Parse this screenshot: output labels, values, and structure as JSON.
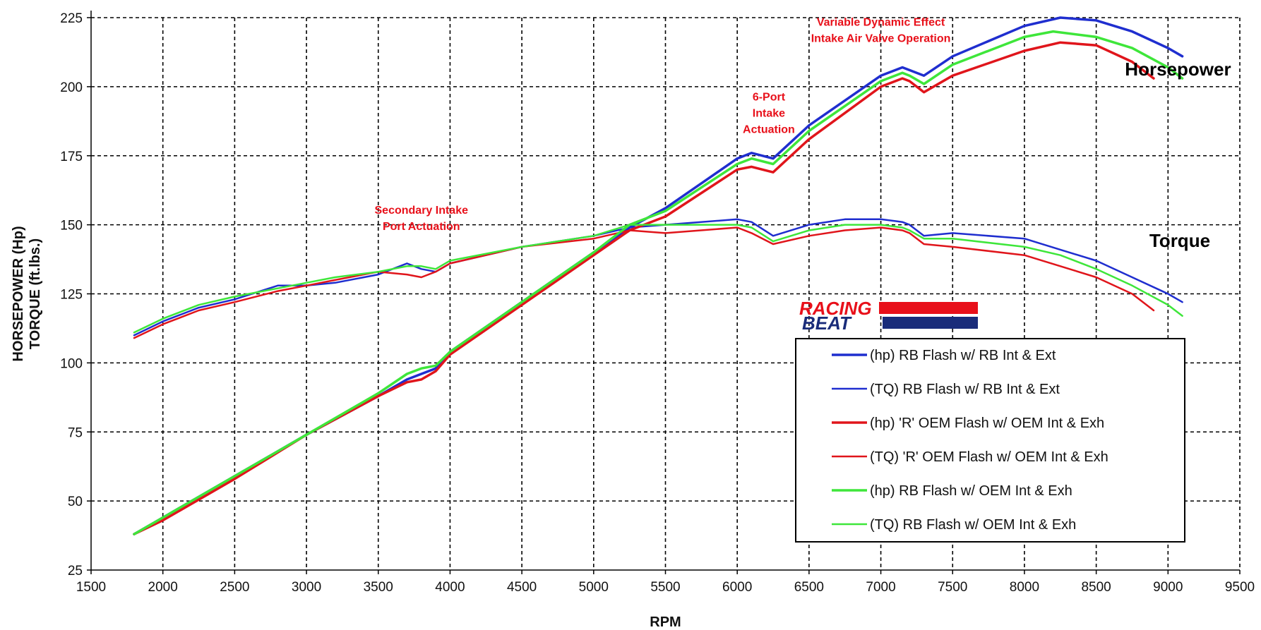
{
  "chart_data": {
    "type": "line",
    "title": "",
    "xlabel": "RPM",
    "ylabel_lines": [
      "HORSEPOWER (Hp)",
      "TORQUE (ft.lbs.)"
    ],
    "xlim": [
      1500,
      9500
    ],
    "ylim": [
      25,
      225
    ],
    "x_ticks": [
      1500,
      2000,
      2500,
      3000,
      3500,
      4000,
      4500,
      5000,
      5500,
      6000,
      6500,
      7000,
      7500,
      8000,
      8500,
      9000,
      9500
    ],
    "y_ticks": [
      25,
      50,
      75,
      100,
      125,
      150,
      175,
      200,
      225
    ],
    "grid": true,
    "legend_position": "bottom-right",
    "series": [
      {
        "name": "(hp) RB Flash w/ RB Int & Ext",
        "color": "#1f2ecf",
        "width": 3.5,
        "x": [
          1800,
          2000,
          2500,
          3000,
          3500,
          3700,
          3800,
          3900,
          4000,
          4500,
          5000,
          5250,
          5500,
          6000,
          6100,
          6250,
          6500,
          7000,
          7150,
          7200,
          7300,
          7500,
          8000,
          8250,
          8500,
          8750,
          9000,
          9100
        ],
        "y": [
          38,
          44,
          59,
          74,
          88,
          94,
          96,
          98,
          104,
          122,
          140,
          149,
          156,
          174,
          176,
          174,
          186,
          204,
          207,
          206,
          204,
          211,
          222,
          225,
          224,
          220,
          214,
          211
        ]
      },
      {
        "name": "(TQ) RB Flash w/ RB Int & Ext",
        "color": "#1f2ecf",
        "width": 2.5,
        "x": [
          1800,
          2000,
          2250,
          2500,
          2800,
          3000,
          3200,
          3500,
          3700,
          3800,
          3900,
          4000,
          4500,
          5000,
          5250,
          5500,
          6000,
          6100,
          6250,
          6500,
          6750,
          7000,
          7150,
          7200,
          7300,
          7500,
          8000,
          8250,
          8500,
          8750,
          9000,
          9100
        ],
        "y": [
          110,
          115,
          120,
          123,
          128,
          128,
          129,
          132,
          136,
          134,
          133,
          136,
          142,
          146,
          149,
          150,
          152,
          151,
          146,
          150,
          152,
          152,
          151,
          150,
          146,
          147,
          145,
          141,
          137,
          131,
          125,
          122
        ]
      },
      {
        "name": "(hp) 'R' OEM Flash w/ OEM Int & Exh",
        "color": "#e0151b",
        "width": 3.5,
        "x": [
          1800,
          2000,
          2500,
          3000,
          3500,
          3700,
          3800,
          3900,
          4000,
          4500,
          5000,
          5250,
          5500,
          6000,
          6100,
          6250,
          6500,
          7000,
          7150,
          7200,
          7300,
          7500,
          8000,
          8250,
          8500,
          8750,
          8900
        ],
        "y": [
          38,
          43,
          58,
          74,
          88,
          93,
          94,
          97,
          103,
          121,
          139,
          148,
          153,
          170,
          171,
          169,
          181,
          200,
          203,
          202,
          198,
          204,
          213,
          216,
          215,
          209,
          203
        ]
      },
      {
        "name": "(TQ) 'R' OEM Flash w/ OEM Int & Exh",
        "color": "#e0151b",
        "width": 2.5,
        "x": [
          1800,
          2000,
          2250,
          2500,
          2800,
          3000,
          3200,
          3500,
          3700,
          3800,
          3900,
          4000,
          4500,
          5000,
          5250,
          5500,
          6000,
          6100,
          6250,
          6500,
          6750,
          7000,
          7150,
          7200,
          7300,
          7500,
          8000,
          8250,
          8500,
          8750,
          8900
        ],
        "y": [
          109,
          114,
          119,
          122,
          126,
          128,
          130,
          133,
          132,
          131,
          133,
          136,
          142,
          145,
          148,
          147,
          149,
          147,
          143,
          146,
          148,
          149,
          148,
          147,
          143,
          142,
          139,
          135,
          131,
          125,
          119
        ]
      },
      {
        "name": "(hp) RB Flash w/ OEM Int & Exh",
        "color": "#3ee63a",
        "width": 3.5,
        "x": [
          1800,
          2000,
          2500,
          3000,
          3500,
          3700,
          3800,
          3900,
          4000,
          4500,
          5000,
          5250,
          5500,
          6000,
          6100,
          6250,
          6500,
          7000,
          7150,
          7200,
          7300,
          7500,
          8000,
          8200,
          8500,
          8750,
          9000,
          9100
        ],
        "y": [
          38,
          44,
          59,
          74,
          89,
          96,
          98,
          99,
          104,
          122,
          140,
          150,
          155,
          172,
          174,
          172,
          184,
          202,
          205,
          204,
          201,
          208,
          218,
          220,
          218,
          214,
          207,
          203
        ]
      },
      {
        "name": "(TQ) RB Flash w/ OEM Int & Exh",
        "color": "#3ee63a",
        "width": 2.5,
        "x": [
          1800,
          2000,
          2250,
          2500,
          2800,
          3000,
          3200,
          3500,
          3700,
          3800,
          3900,
          4000,
          4500,
          5000,
          5250,
          5500,
          6000,
          6100,
          6250,
          6500,
          6750,
          7000,
          7150,
          7200,
          7300,
          7500,
          8000,
          8250,
          8500,
          8750,
          9000,
          9100
        ],
        "y": [
          111,
          116,
          121,
          124,
          127,
          129,
          131,
          133,
          135,
          135,
          134,
          137,
          142,
          146,
          150,
          150,
          150,
          149,
          144,
          148,
          150,
          150,
          149,
          148,
          145,
          145,
          142,
          139,
          134,
          128,
          121,
          117
        ]
      }
    ],
    "annotations": [
      {
        "id": "secondary",
        "lines": [
          "Secondary Intake",
          "Port Actuation"
        ],
        "x": 3800,
        "y": 154
      },
      {
        "id": "sixport",
        "lines": [
          "6-Port",
          "Intake",
          "Actuation"
        ],
        "x": 6220,
        "y": 195
      },
      {
        "id": "vdei",
        "lines": [
          "Variable Dynamic Effect",
          "Intake Air Valve Operation"
        ],
        "x": 7000,
        "y": 222
      }
    ],
    "curve_labels": [
      {
        "text": "Horsepower",
        "x": 8700,
        "y": 204
      },
      {
        "text": "Torque",
        "x": 8870,
        "y": 142
      }
    ]
  },
  "logo": {
    "line1": "RACING",
    "line2": "BEAT",
    "colors": [
      "#e8101a",
      "#1a2c7a"
    ]
  }
}
